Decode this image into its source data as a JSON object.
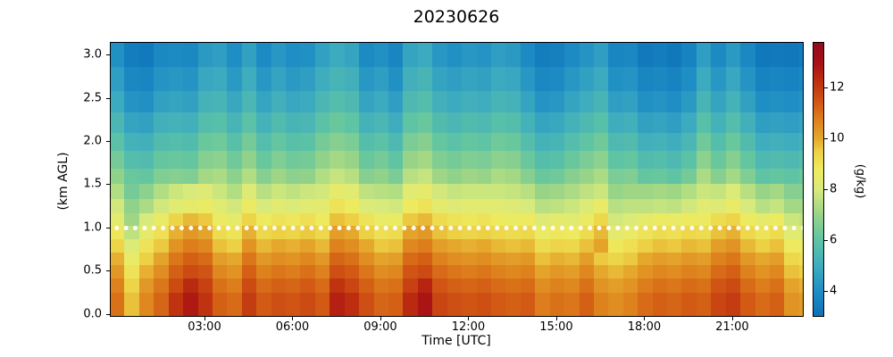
{
  "title": "20230626",
  "xlabel": "Time [UTC]",
  "ylabel": "(km AGL)",
  "axes": {
    "x_ticks": [
      {
        "hour": 3,
        "label": "03:00"
      },
      {
        "hour": 6,
        "label": "06:00"
      },
      {
        "hour": 9,
        "label": "09:00"
      },
      {
        "hour": 12,
        "label": "12:00"
      },
      {
        "hour": 15,
        "label": "15:00"
      },
      {
        "hour": 18,
        "label": "18:00"
      },
      {
        "hour": 21,
        "label": "21:00"
      }
    ],
    "y_ticks": [
      {
        "km": 0.0,
        "label": "0.0"
      },
      {
        "km": 0.5,
        "label": "0.5"
      },
      {
        "km": 1.0,
        "label": "1.0"
      },
      {
        "km": 1.5,
        "label": "1.5"
      },
      {
        "km": 2.0,
        "label": "2.0"
      },
      {
        "km": 2.5,
        "label": "2.5"
      },
      {
        "km": 3.0,
        "label": "3.0"
      }
    ]
  },
  "colorbar": {
    "label": "(g/kg)",
    "vmin": 3.0,
    "vmax": 13.8,
    "ticks": [
      4,
      6,
      8,
      10,
      12
    ],
    "stops": [
      [
        3.0,
        "#0d72b8"
      ],
      [
        4.0,
        "#1e8ec5"
      ],
      [
        5.0,
        "#3fadbe"
      ],
      [
        6.0,
        "#5ec4a4"
      ],
      [
        7.0,
        "#97d487"
      ],
      [
        8.0,
        "#d9ea7c"
      ],
      [
        8.8,
        "#eeea5f"
      ],
      [
        9.5,
        "#edd145"
      ],
      [
        10.0,
        "#e5a82d"
      ],
      [
        10.8,
        "#dd7d1b"
      ],
      [
        11.5,
        "#d05414"
      ],
      [
        12.3,
        "#bd2e10"
      ],
      [
        13.0,
        "#a81016"
      ],
      [
        13.8,
        "#930b1f"
      ]
    ]
  },
  "marker_line": {
    "height_km": 1.0,
    "color": "#ffffff",
    "style": "dotted"
  },
  "chart_data": {
    "type": "heatmap",
    "units": "g/kg",
    "title": "20230626",
    "xlabel": "Time [UTC]",
    "ylabel": "(km AGL)",
    "x_hours": [
      0,
      0.5,
      1,
      1.5,
      2,
      2.5,
      3,
      3.5,
      4,
      4.5,
      5,
      5.5,
      6,
      6.5,
      7,
      7.5,
      8,
      8.5,
      9,
      9.5,
      10,
      10.5,
      11,
      11.5,
      12,
      12.5,
      13,
      13.5,
      14,
      14.5,
      15,
      15.5,
      16,
      16.5,
      17,
      17.5,
      18,
      18.5,
      19,
      19.5,
      20,
      20.5,
      21,
      21.5,
      22,
      22.5,
      23,
      23.5
    ],
    "row_edges_km": [
      3.15,
      2.86,
      2.59,
      2.34,
      2.11,
      1.9,
      1.7,
      1.52,
      1.35,
      1.19,
      1.04,
      0.89,
      0.74,
      0.59,
      0.44,
      0.27,
      0.0
    ],
    "y_km": [
      3.0,
      2.72,
      2.46,
      2.22,
      2.0,
      1.8,
      1.61,
      1.43,
      1.27,
      1.12,
      0.97,
      0.82,
      0.67,
      0.52,
      0.36,
      0.14
    ],
    "values": [
      [
        4.1,
        3.4,
        3.3,
        3.8,
        3.9,
        3.8,
        4.4,
        4.5,
        4.0,
        4.6,
        3.9,
        4.3,
        4.0,
        4.1,
        4.6,
        4.9,
        4.7,
        3.9,
        4.1,
        3.7,
        4.7,
        4.9,
        4.3,
        4.1,
        4.3,
        4.2,
        4.5,
        4.4,
        3.9,
        3.4,
        3.5,
        3.9,
        4.2,
        4.5,
        3.7,
        3.8,
        3.3,
        3.4,
        3.2,
        3.6,
        4.5,
        3.9,
        4.4,
        3.8,
        3.2,
        3.3,
        3.2,
        3.4
      ],
      [
        4.5,
        3.8,
        3.7,
        4.2,
        4.3,
        4.2,
        4.8,
        4.9,
        4.4,
        5.0,
        4.3,
        4.7,
        4.4,
        4.5,
        5.0,
        5.3,
        5.1,
        4.3,
        4.5,
        4.1,
        5.1,
        5.3,
        4.7,
        4.5,
        4.7,
        4.6,
        4.9,
        4.8,
        4.3,
        3.8,
        3.9,
        4.3,
        4.6,
        4.9,
        4.1,
        4.2,
        3.7,
        3.8,
        3.6,
        4.0,
        4.9,
        4.3,
        4.8,
        4.2,
        3.6,
        3.7,
        3.6,
        3.8
      ],
      [
        4.9,
        4.2,
        4.1,
        4.6,
        4.7,
        4.6,
        5.2,
        5.3,
        4.8,
        5.4,
        4.7,
        5.1,
        4.8,
        4.9,
        5.4,
        5.7,
        5.5,
        4.7,
        4.9,
        4.5,
        5.5,
        5.7,
        5.1,
        4.9,
        5.1,
        5.0,
        5.3,
        5.2,
        4.7,
        4.2,
        4.3,
        4.7,
        5.0,
        5.3,
        4.5,
        4.6,
        4.1,
        4.2,
        4.0,
        4.4,
        5.3,
        4.7,
        5.2,
        4.6,
        4.0,
        4.1,
        4.0,
        4.2
      ],
      [
        5.4,
        4.7,
        4.6,
        5.1,
        5.2,
        5.1,
        5.7,
        5.8,
        5.3,
        5.9,
        5.2,
        5.6,
        5.3,
        5.4,
        5.9,
        6.2,
        6.0,
        5.2,
        5.4,
        5.0,
        6.0,
        6.2,
        5.6,
        5.4,
        5.6,
        5.5,
        5.8,
        5.7,
        5.2,
        4.7,
        4.8,
        5.2,
        5.5,
        5.8,
        5.0,
        5.1,
        4.6,
        4.7,
        4.5,
        4.9,
        5.8,
        5.2,
        5.7,
        5.1,
        4.5,
        4.6,
        4.5,
        4.7
      ],
      [
        5.9,
        5.2,
        5.1,
        5.6,
        5.7,
        5.6,
        6.2,
        6.3,
        5.8,
        6.4,
        5.7,
        6.1,
        5.8,
        5.9,
        6.4,
        6.7,
        6.5,
        5.7,
        5.9,
        5.5,
        6.5,
        6.7,
        6.1,
        5.9,
        6.1,
        6.0,
        6.3,
        6.2,
        5.7,
        5.2,
        5.3,
        5.7,
        6.0,
        6.3,
        5.5,
        5.6,
        5.1,
        5.2,
        5.0,
        5.4,
        6.3,
        5.7,
        6.2,
        5.6,
        5.0,
        5.1,
        5.0,
        5.2
      ],
      [
        6.4,
        5.7,
        5.6,
        6.1,
        6.2,
        6.1,
        6.7,
        6.8,
        6.3,
        6.9,
        6.2,
        6.6,
        6.3,
        6.4,
        6.9,
        7.2,
        7.0,
        6.2,
        6.4,
        6.0,
        7.0,
        7.2,
        6.6,
        6.4,
        6.6,
        6.5,
        6.8,
        6.7,
        6.2,
        5.7,
        5.8,
        6.2,
        6.5,
        6.8,
        6.0,
        6.1,
        5.6,
        5.7,
        5.5,
        5.9,
        6.8,
        6.2,
        6.7,
        6.1,
        5.5,
        5.6,
        5.5,
        5.7
      ],
      [
        6.9,
        6.2,
        6.1,
        6.6,
        6.7,
        6.6,
        7.2,
        7.3,
        6.8,
        7.4,
        6.7,
        7.1,
        6.8,
        6.9,
        7.4,
        7.7,
        7.5,
        6.7,
        6.9,
        6.5,
        7.5,
        7.7,
        7.1,
        6.9,
        7.1,
        7.0,
        7.3,
        7.2,
        6.7,
        6.2,
        6.3,
        6.7,
        7.0,
        7.3,
        6.5,
        6.6,
        6.1,
        6.2,
        6.0,
        6.4,
        7.3,
        6.7,
        7.2,
        6.6,
        6.0,
        6.1,
        6.0,
        6.2
      ],
      [
        7.4,
        6.4,
        6.8,
        7.4,
        7.8,
        8.0,
        8.2,
        7.8,
        7.4,
        8.2,
        7.5,
        7.8,
        7.6,
        7.8,
        7.9,
        8.5,
        8.3,
        7.6,
        7.5,
        7.4,
        8.3,
        8.5,
        7.9,
        7.7,
        7.8,
        7.8,
        7.8,
        7.7,
        7.5,
        7.0,
        7.1,
        7.3,
        7.6,
        7.8,
        7.0,
        7.1,
        7.1,
        7.2,
        7.1,
        7.4,
        7.8,
        7.7,
        8.1,
        7.5,
        7.0,
        7.2,
        6.7,
        6.7
      ],
      [
        7.9,
        6.9,
        7.3,
        7.9,
        8.3,
        8.5,
        8.7,
        8.3,
        7.9,
        8.7,
        8.0,
        8.3,
        8.1,
        8.3,
        8.4,
        9.0,
        8.8,
        8.1,
        8.0,
        7.9,
        8.8,
        9.0,
        8.4,
        8.2,
        8.3,
        8.3,
        8.3,
        8.2,
        8.0,
        7.5,
        7.6,
        7.8,
        8.1,
        8.6,
        7.5,
        7.6,
        7.6,
        7.7,
        7.6,
        7.9,
        8.3,
        8.2,
        8.6,
        8.0,
        7.5,
        7.7,
        7.2,
        7.2
      ],
      [
        8.4,
        7.1,
        8.0,
        8.6,
        9.4,
        9.8,
        9.6,
        8.7,
        8.5,
        9.4,
        8.8,
        9.0,
        8.9,
        9.1,
        8.8,
        9.7,
        9.5,
        9.0,
        8.6,
        8.7,
        9.6,
        9.8,
        9.2,
        9.0,
        8.9,
        9.0,
        8.8,
        8.7,
        8.8,
        8.2,
        8.4,
        8.3,
        8.7,
        9.3,
        7.9,
        8.1,
        8.5,
        8.7,
        8.6,
        8.8,
        8.7,
        9.2,
        9.4,
        8.8,
        8.5,
        8.7,
        7.8,
        7.6
      ],
      [
        8.9,
        7.6,
        8.5,
        9.1,
        9.9,
        10.3,
        10.1,
        9.2,
        9.0,
        9.9,
        9.3,
        9.5,
        9.4,
        9.6,
        9.3,
        10.2,
        10.0,
        9.5,
        9.1,
        9.2,
        10.1,
        10.3,
        9.7,
        9.5,
        9.4,
        9.5,
        9.3,
        9.2,
        9.3,
        8.7,
        8.9,
        8.8,
        9.2,
        9.8,
        8.4,
        8.6,
        9.0,
        9.2,
        9.1,
        9.3,
        9.2,
        9.7,
        9.9,
        9.3,
        9.0,
        9.2,
        8.3,
        8.1
      ],
      [
        9.4,
        8.1,
        9.0,
        9.6,
        10.4,
        10.8,
        10.6,
        9.7,
        9.5,
        10.4,
        9.8,
        10.0,
        9.9,
        10.1,
        9.8,
        10.7,
        10.5,
        10.0,
        9.6,
        9.7,
        10.6,
        10.8,
        10.2,
        10.0,
        9.9,
        10.0,
        9.8,
        9.7,
        9.8,
        9.2,
        9.4,
        9.3,
        9.7,
        10.1,
        8.9,
        9.1,
        9.5,
        9.7,
        9.6,
        9.8,
        9.7,
        10.2,
        10.4,
        9.8,
        9.5,
        9.7,
        8.8,
        8.6
      ],
      [
        9.9,
        8.6,
        9.5,
        10.1,
        10.9,
        11.3,
        11.1,
        10.2,
        10.0,
        10.9,
        10.3,
        10.5,
        10.4,
        10.6,
        10.3,
        11.2,
        11.0,
        10.5,
        10.1,
        10.2,
        11.1,
        11.3,
        10.7,
        10.5,
        10.4,
        10.5,
        10.3,
        10.2,
        10.3,
        9.7,
        9.9,
        9.8,
        10.2,
        9.6,
        9.4,
        9.6,
        10.0,
        10.2,
        10.1,
        10.3,
        10.2,
        10.7,
        10.9,
        10.3,
        10.0,
        10.2,
        9.3,
        9.1
      ],
      [
        10.3,
        9.0,
        9.9,
        10.5,
        11.3,
        11.7,
        11.5,
        10.6,
        10.4,
        11.3,
        10.7,
        10.9,
        10.8,
        11.0,
        10.7,
        11.6,
        11.4,
        10.9,
        10.5,
        10.6,
        11.5,
        11.7,
        11.1,
        10.9,
        10.8,
        10.9,
        10.7,
        10.6,
        10.7,
        10.1,
        10.3,
        10.2,
        10.6,
        10.0,
        9.8,
        10.0,
        10.4,
        10.6,
        10.5,
        10.7,
        10.6,
        11.1,
        11.3,
        10.7,
        10.4,
        10.6,
        9.7,
        9.5
      ],
      [
        10.7,
        9.4,
        10.3,
        10.9,
        11.7,
        12.4,
        11.9,
        11.0,
        10.8,
        11.7,
        11.1,
        11.3,
        11.2,
        11.4,
        11.1,
        12.2,
        11.8,
        11.3,
        10.9,
        11.0,
        11.9,
        12.5,
        11.5,
        11.3,
        11.2,
        11.3,
        11.1,
        11.0,
        11.1,
        10.5,
        10.7,
        10.6,
        11.0,
        10.4,
        10.2,
        10.4,
        10.8,
        11.0,
        10.9,
        11.1,
        11.0,
        11.5,
        11.7,
        11.1,
        10.8,
        11.0,
        10.1,
        9.9
      ],
      [
        11.0,
        9.7,
        10.6,
        11.2,
        12.2,
        12.8,
        12.2,
        11.3,
        11.1,
        12.0,
        11.4,
        11.6,
        11.5,
        11.7,
        11.4,
        12.6,
        12.3,
        11.6,
        11.2,
        11.3,
        12.4,
        12.9,
        11.8,
        11.6,
        11.5,
        11.6,
        11.4,
        11.3,
        11.4,
        10.8,
        11.0,
        10.9,
        11.3,
        10.7,
        10.5,
        10.7,
        11.1,
        11.3,
        11.2,
        11.4,
        11.3,
        11.8,
        12.0,
        11.4,
        11.1,
        11.3,
        10.4,
        10.2
      ]
    ]
  }
}
